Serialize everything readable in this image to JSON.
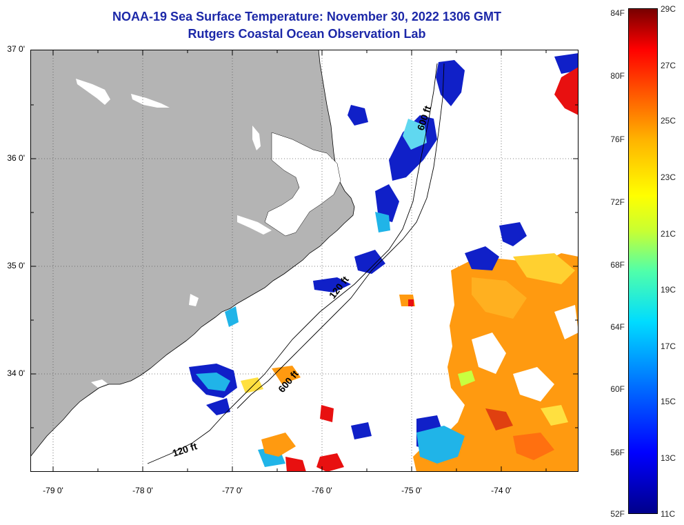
{
  "title": {
    "line1": "NOAA-19 Sea Surface Temperature:  November 30, 2022 1306 GMT",
    "line2": "Rutgers Coastal Ocean Observation Lab"
  },
  "axes": {
    "lat_ticks": [
      {
        "value": 37.0,
        "label": "37 0'"
      },
      {
        "value": 36.0,
        "label": "36 0'"
      },
      {
        "value": 35.0,
        "label": "35 0'"
      },
      {
        "value": 34.0,
        "label": "34 0'"
      }
    ],
    "lon_ticks": [
      {
        "value": -79.0,
        "label": "-79 0'"
      },
      {
        "value": -78.0,
        "label": "-78 0'"
      },
      {
        "value": -77.0,
        "label": "-77 0'"
      },
      {
        "value": -76.0,
        "label": "-76 0'"
      },
      {
        "value": -75.0,
        "label": "-75 0'"
      },
      {
        "value": -74.0,
        "label": "-74 0'"
      }
    ],
    "lat_range": [
      33.18,
      37.0
    ],
    "lon_range": [
      -79.3,
      -73.2
    ]
  },
  "isobaths": [
    {
      "label": "600 ft"
    },
    {
      "label": "120 ft"
    },
    {
      "label": "600 ft"
    },
    {
      "label": "120 ft"
    }
  ],
  "colorbar": {
    "fahrenheit": [
      {
        "value": 84,
        "label": "84F"
      },
      {
        "value": 80,
        "label": "80F"
      },
      {
        "value": 76,
        "label": "76F"
      },
      {
        "value": 72,
        "label": "72F"
      },
      {
        "value": 68,
        "label": "68F"
      },
      {
        "value": 64,
        "label": "64F"
      },
      {
        "value": 60,
        "label": "60F"
      },
      {
        "value": 56,
        "label": "56F"
      },
      {
        "value": 52,
        "label": "52F"
      }
    ],
    "celsius": [
      {
        "value": 29,
        "label": "29C"
      },
      {
        "value": 27,
        "label": "27C"
      },
      {
        "value": 25,
        "label": "25C"
      },
      {
        "value": 23,
        "label": "23C"
      },
      {
        "value": 21,
        "label": "21C"
      },
      {
        "value": 19,
        "label": "19C"
      },
      {
        "value": 17,
        "label": "17C"
      },
      {
        "value": 15,
        "label": "15C"
      },
      {
        "value": 13,
        "label": "13C"
      },
      {
        "value": 11,
        "label": "11C"
      }
    ]
  },
  "colors": {
    "title": "#1c28a8",
    "land": "#b4b4b4",
    "warm": "#ff9a10",
    "hot": "#e81010",
    "cold": "#1020c8",
    "cool": "#20b4e8"
  }
}
